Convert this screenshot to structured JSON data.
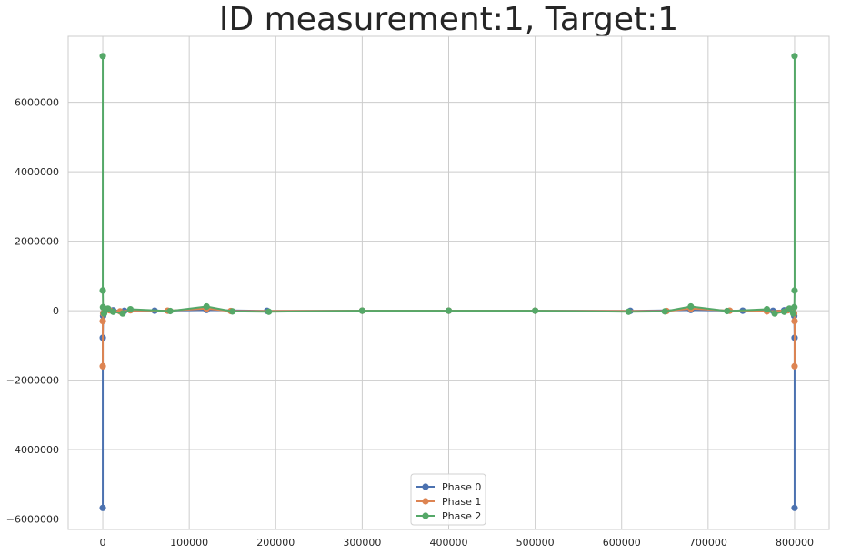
{
  "chart_data": {
    "type": "line",
    "title": "ID measurement:1, Target:1",
    "xlabel": "",
    "ylabel": "",
    "xlim": [
      -40000,
      840000
    ],
    "ylim": [
      -6300000,
      7900000
    ],
    "x_ticks": [
      0,
      100000,
      200000,
      300000,
      400000,
      500000,
      600000,
      700000,
      800000
    ],
    "y_ticks": [
      -6000000,
      -4000000,
      -2000000,
      0,
      2000000,
      4000000,
      6000000
    ],
    "grid": true,
    "legend_position": "lower center",
    "series": [
      {
        "name": "Phase 0",
        "color": "#4c72b0",
        "points": [
          [
            0,
            -5680000
          ],
          [
            0,
            -780000
          ],
          [
            400,
            -150000
          ],
          [
            1000,
            -60000
          ],
          [
            4000,
            20000
          ],
          [
            12000,
            10000
          ],
          [
            25000,
            -5000
          ],
          [
            60000,
            0
          ],
          [
            120000,
            20000
          ],
          [
            190000,
            -5000
          ],
          [
            300000,
            0
          ],
          [
            400000,
            0
          ],
          [
            500000,
            0
          ],
          [
            610000,
            -5000
          ],
          [
            680000,
            20000
          ],
          [
            740000,
            0
          ],
          [
            775000,
            -5000
          ],
          [
            788000,
            10000
          ],
          [
            796000,
            20000
          ],
          [
            799000,
            -60000
          ],
          [
            799600,
            -150000
          ],
          [
            800000,
            -780000
          ],
          [
            800000,
            -5680000
          ]
        ]
      },
      {
        "name": "Phase 1",
        "color": "#dd8452",
        "points": [
          [
            0,
            -1600000
          ],
          [
            0,
            -300000
          ],
          [
            500,
            -80000
          ],
          [
            2000,
            40000
          ],
          [
            8000,
            10000
          ],
          [
            20000,
            -20000
          ],
          [
            32000,
            10000
          ],
          [
            75000,
            0
          ],
          [
            120000,
            60000
          ],
          [
            148000,
            -10000
          ],
          [
            300000,
            0
          ],
          [
            400000,
            0
          ],
          [
            500000,
            0
          ],
          [
            652000,
            -10000
          ],
          [
            680000,
            60000
          ],
          [
            725000,
            0
          ],
          [
            768000,
            -20000
          ],
          [
            792000,
            10000
          ],
          [
            798000,
            40000
          ],
          [
            799500,
            -80000
          ],
          [
            800000,
            -300000
          ],
          [
            800000,
            -1600000
          ]
        ]
      },
      {
        "name": "Phase 2",
        "color": "#55a868",
        "points": [
          [
            0,
            7330000
          ],
          [
            0,
            580000
          ],
          [
            300,
            100000
          ],
          [
            1500,
            -80000
          ],
          [
            6000,
            60000
          ],
          [
            12000,
            -30000
          ],
          [
            23000,
            -80000
          ],
          [
            32000,
            40000
          ],
          [
            78000,
            -10000
          ],
          [
            120000,
            120000
          ],
          [
            150000,
            -20000
          ],
          [
            192000,
            -30000
          ],
          [
            300000,
            0
          ],
          [
            400000,
            0
          ],
          [
            500000,
            0
          ],
          [
            608000,
            -30000
          ],
          [
            650000,
            -20000
          ],
          [
            680000,
            120000
          ],
          [
            722000,
            -10000
          ],
          [
            768000,
            40000
          ],
          [
            777000,
            -80000
          ],
          [
            788000,
            -30000
          ],
          [
            794000,
            60000
          ],
          [
            798500,
            -80000
          ],
          [
            799700,
            100000
          ],
          [
            800000,
            580000
          ],
          [
            800000,
            7330000
          ]
        ]
      }
    ]
  }
}
